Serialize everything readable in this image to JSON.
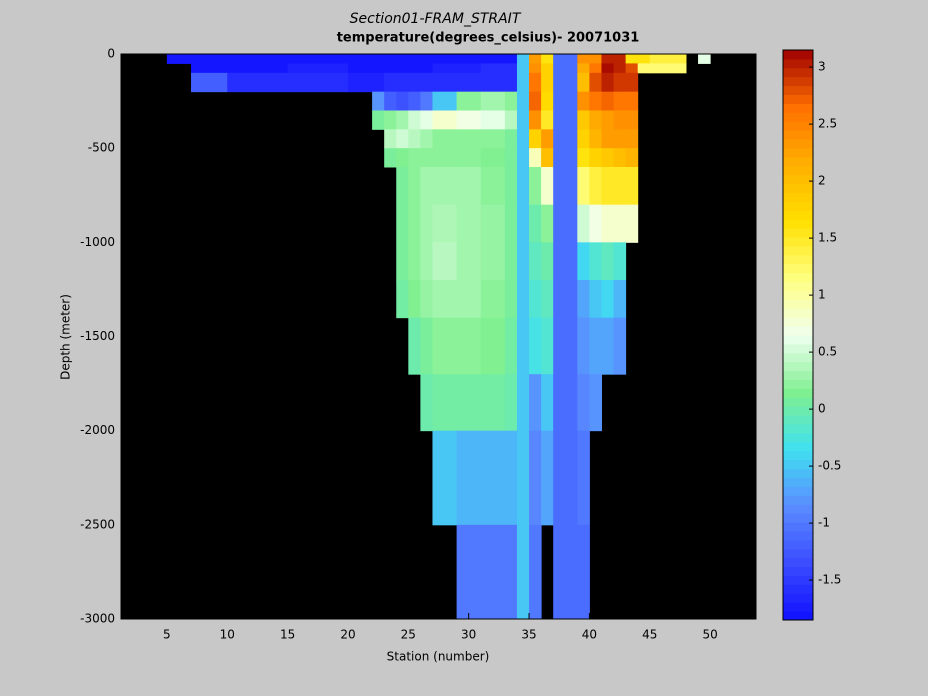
{
  "chart_data": {
    "type": "heatmap",
    "title": "Section01-FRAM_STRAIT",
    "subtitle": "temperature(degrees_celsius)- 20071031",
    "x_label": "Station (number)",
    "y_label": "Depth (meter)",
    "xlim": [
      1.2,
      53.8
    ],
    "ylim": [
      -3000,
      0
    ],
    "xticks": [
      5,
      10,
      15,
      20,
      25,
      30,
      35,
      40,
      45,
      50
    ],
    "yticks": [
      0,
      -500,
      -1000,
      -1500,
      -2000,
      -2500,
      -3000
    ],
    "x_edges": [
      5,
      7,
      10,
      15,
      20,
      22,
      23,
      24,
      25,
      26,
      27,
      29,
      31,
      33,
      34,
      35,
      36,
      37,
      39,
      40,
      41,
      42,
      43,
      44,
      45,
      48,
      49,
      50
    ],
    "y_edges": [
      0,
      -50,
      -100,
      -200,
      -300,
      -400,
      -500,
      -600,
      -800,
      -1000,
      -1200,
      -1400,
      -1700,
      -2000,
      -2500,
      -3000
    ],
    "z": [
      [
        -1.8,
        -1.8,
        -1.8,
        -1.8,
        -1.8,
        -1.8,
        -1.8,
        -1.8,
        -1.8,
        -1.8,
        -1.8,
        -1.8,
        -1.8,
        -1.8,
        -0.5,
        2.3,
        1.6,
        -1.1,
        2.4,
        2.4,
        3.0,
        3.0,
        1.6,
        1.6,
        1.4,
        null,
        0.6
      ],
      [
        null,
        -1.8,
        -1.8,
        -1.7,
        -1.8,
        -1.8,
        -1.8,
        -1.8,
        -1.8,
        -1.8,
        -1.7,
        -1.7,
        -1.6,
        -1.6,
        -0.5,
        2.4,
        1.8,
        -1.1,
        2.2,
        2.6,
        3.1,
        3.0,
        2.8,
        1.2,
        1.2,
        null,
        null
      ],
      [
        null,
        -1.2,
        -1.6,
        -1.6,
        -1.7,
        -1.7,
        -1.6,
        -1.6,
        -1.6,
        -1.6,
        -1.6,
        -1.6,
        -1.6,
        -1.6,
        -0.5,
        2.6,
        1.8,
        -1.1,
        2.0,
        2.8,
        3.0,
        2.9,
        2.9,
        null,
        null,
        null,
        null
      ],
      [
        null,
        null,
        null,
        null,
        null,
        -0.8,
        -1.2,
        -1.3,
        -1.2,
        -1.0,
        -0.5,
        0.2,
        0.3,
        0.2,
        -0.5,
        2.7,
        1.7,
        -1.1,
        2.4,
        2.6,
        2.7,
        2.6,
        2.6,
        null,
        null,
        null,
        null
      ],
      [
        null,
        null,
        null,
        null,
        null,
        0.1,
        0.2,
        0.3,
        0.5,
        0.6,
        0.8,
        0.7,
        0.6,
        0.4,
        -0.5,
        2.4,
        1.5,
        -1.1,
        1.9,
        2.2,
        2.3,
        2.4,
        2.4,
        null,
        null,
        null,
        null
      ],
      [
        null,
        null,
        null,
        null,
        null,
        null,
        0.4,
        0.5,
        0.4,
        0.3,
        0.2,
        0.2,
        0.2,
        0.1,
        -0.5,
        1.8,
        2.3,
        -1.1,
        1.8,
        2.1,
        2.3,
        2.3,
        2.3,
        null,
        null,
        null,
        null
      ],
      [
        null,
        null,
        null,
        null,
        null,
        null,
        0.1,
        0.15,
        0.2,
        0.2,
        0.2,
        0.2,
        0.15,
        0.1,
        -0.5,
        0.9,
        2.0,
        -1.1,
        1.6,
        1.8,
        1.9,
        2.0,
        2.1,
        null,
        null,
        null,
        null
      ],
      [
        null,
        null,
        null,
        null,
        null,
        null,
        null,
        0.1,
        0.2,
        0.3,
        0.3,
        0.3,
        0.2,
        0.1,
        -0.5,
        0.2,
        0.8,
        -1.1,
        1.2,
        1.4,
        1.5,
        1.5,
        1.5,
        null,
        null,
        null,
        null
      ],
      [
        null,
        null,
        null,
        null,
        null,
        null,
        null,
        0.1,
        0.2,
        0.3,
        0.35,
        0.3,
        0.25,
        0.1,
        -0.5,
        0.0,
        0.2,
        -1.1,
        0.5,
        0.7,
        0.8,
        0.8,
        0.8,
        null,
        null,
        null,
        null
      ],
      [
        null,
        null,
        null,
        null,
        null,
        null,
        null,
        0.1,
        0.2,
        0.3,
        0.4,
        0.3,
        0.25,
        0.1,
        -0.5,
        -0.1,
        0.0,
        -1.1,
        -0.4,
        -0.2,
        -0.1,
        -0.2,
        null,
        null,
        null,
        null,
        null
      ],
      [
        null,
        null,
        null,
        null,
        null,
        null,
        null,
        0.05,
        0.15,
        0.25,
        0.3,
        0.3,
        0.2,
        0.1,
        -0.5,
        -0.2,
        -0.1,
        -1.1,
        -0.7,
        -0.5,
        -0.4,
        -0.6,
        null,
        null,
        null,
        null,
        null
      ],
      [
        null,
        null,
        null,
        null,
        null,
        null,
        null,
        null,
        0.0,
        0.1,
        0.2,
        0.2,
        0.15,
        0.05,
        -0.5,
        -0.3,
        -0.2,
        -1.1,
        -0.8,
        -0.7,
        -0.7,
        -0.8,
        null,
        null,
        null,
        null,
        null
      ],
      [
        null,
        null,
        null,
        null,
        null,
        null,
        null,
        null,
        null,
        0.0,
        0.05,
        0.05,
        0.05,
        0.0,
        -0.5,
        -0.8,
        -0.5,
        -1.1,
        -0.9,
        -0.8,
        null,
        null,
        null,
        null,
        null,
        null,
        null
      ],
      [
        null,
        null,
        null,
        null,
        null,
        null,
        null,
        null,
        null,
        null,
        -0.5,
        -0.6,
        -0.6,
        -0.6,
        -0.5,
        -0.9,
        -0.7,
        -1.1,
        -1.0,
        null,
        null,
        null,
        null,
        null,
        null,
        null,
        null
      ],
      [
        null,
        null,
        null,
        null,
        null,
        null,
        null,
        null,
        null,
        null,
        null,
        -1.0,
        -1.0,
        -1.0,
        -0.5,
        -1.0,
        null,
        -1.1,
        -1.1,
        null,
        null,
        null,
        null,
        null,
        null,
        null,
        null
      ]
    ],
    "clim": [
      -1.85,
      3.15
    ],
    "cticks": [
      -1.5,
      -1,
      -0.5,
      0,
      0.5,
      1,
      1.5,
      2,
      2.5,
      3
    ],
    "colormap": [
      "#1010ff",
      "#3a4cff",
      "#5a8cff",
      "#40e0f0",
      "#80f090",
      "#f0fff0",
      "#ffff80",
      "#ffe000",
      "#ffb000",
      "#ff7000",
      "#a00000"
    ],
    "background": "#000000"
  }
}
